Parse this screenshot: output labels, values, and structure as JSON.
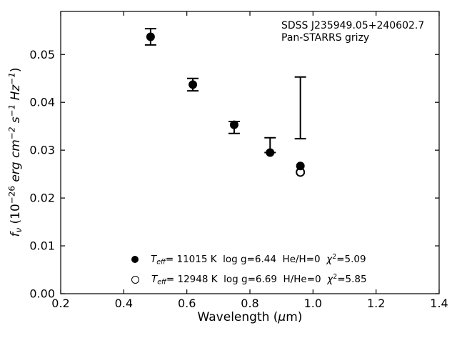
{
  "colors": {
    "foreground": "#000000",
    "background": "#ffffff"
  },
  "annotation": {
    "line1": "SDSS J235949.05+240602.7",
    "line2": "Pan-STARRS grizy"
  },
  "xlabel": {
    "pre": "Wavelength (",
    "mu": "μ",
    "post": "m)"
  },
  "ylabel": {
    "f": "f",
    "nu": "ν",
    "open": " (10",
    "exp10": "−26",
    "units1": " erg cm",
    "exp_cm": "−2",
    "units2": " s",
    "exp_s": "−1",
    "units3": " Hz",
    "exp_hz": "−1",
    "close": ")"
  },
  "legend": {
    "rows": [
      {
        "marker": "filled",
        "T": "T",
        "sub": "eff",
        "main": "= 11015 K  log g=6.44  He/H=0  ",
        "chi": "χ",
        "sup": "2",
        "chival": "=5.09"
      },
      {
        "marker": "open",
        "T": "T",
        "sub": "eff",
        "main": "= 12948 K  log g=6.69  H/He=0  ",
        "chi": "χ",
        "sup": "2",
        "chival": "=5.85"
      }
    ]
  },
  "chart_data": {
    "type": "scatter",
    "title": "",
    "xlabel": "Wavelength (μm)",
    "ylabel": "f_ν (10^−26 erg cm^−2 s^−1 Hz^−1)",
    "xlim": [
      0.2,
      1.4
    ],
    "ylim": [
      0.0,
      0.059
    ],
    "grid": false,
    "legend_position": "lower center inside axes",
    "x_ticks": [
      0.2,
      0.4,
      0.6,
      0.8,
      1.0,
      1.2,
      1.4
    ],
    "x_tick_labels": [
      "0.2",
      "0.4",
      "0.6",
      "0.8",
      "1.0",
      "1.2",
      "1.4"
    ],
    "y_ticks": [
      0.0,
      0.01,
      0.02,
      0.03,
      0.04,
      0.05
    ],
    "y_tick_labels": [
      "0.00",
      "0.01",
      "0.02",
      "0.03",
      "0.04",
      "0.05"
    ],
    "series": [
      {
        "name": "Teff= 11015 K log g=6.44 He/H=0 chi2=5.09",
        "marker": "filled-circle",
        "points": [
          {
            "x": 0.485,
            "y": 0.0537
          },
          {
            "x": 0.619,
            "y": 0.0437
          },
          {
            "x": 0.75,
            "y": 0.0353
          },
          {
            "x": 0.864,
            "y": 0.0295
          },
          {
            "x": 0.96,
            "y": 0.0267
          }
        ]
      },
      {
        "name": "Teff= 12948 K log g=6.69 H/He=0 chi2=5.85",
        "marker": "open-circle",
        "points": [
          {
            "x": 0.96,
            "y": 0.0254
          }
        ]
      }
    ],
    "error_bars": [
      {
        "x": 0.485,
        "top": 0.0554,
        "bottom": 0.052
      },
      {
        "x": 0.619,
        "top": 0.045,
        "bottom": 0.0424
      },
      {
        "x": 0.75,
        "top": 0.036,
        "bottom": 0.0335
      },
      {
        "x": 0.864,
        "top": 0.0326,
        "bottom": 0.0295
      },
      {
        "x": 0.96,
        "top": 0.0453,
        "bottom": 0.0324
      }
    ]
  }
}
